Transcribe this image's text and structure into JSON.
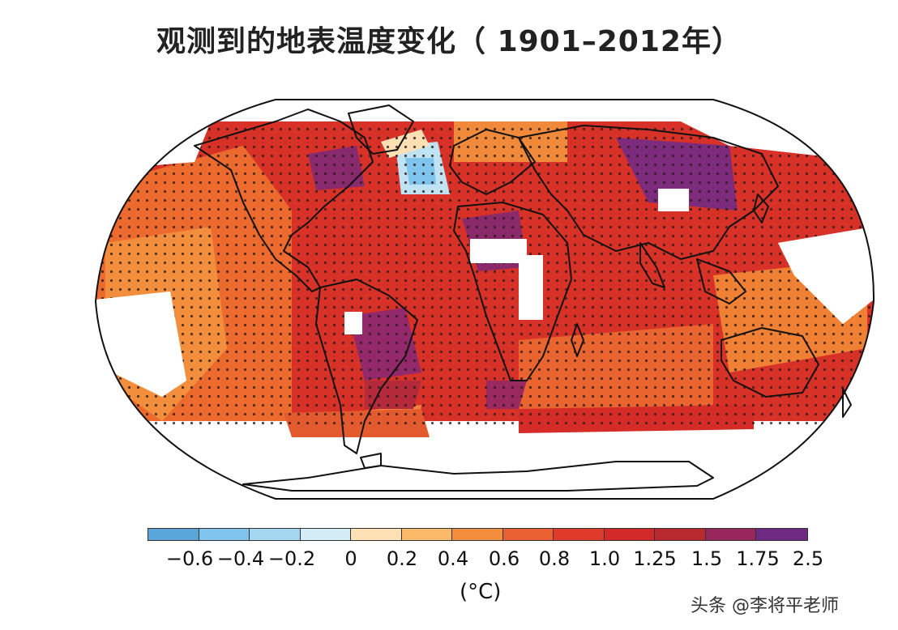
{
  "title": "观测到的地表温度变化（ 1901–2012年）",
  "legend": {
    "unit_label": "(°C)",
    "bins": [
      {
        "color": "#5aa6da"
      },
      {
        "color": "#7fc4ec"
      },
      {
        "color": "#a5d8f0"
      },
      {
        "color": "#d3ecf6"
      },
      {
        "color": "#fde0b4"
      },
      {
        "color": "#fbb96a"
      },
      {
        "color": "#f28e3e"
      },
      {
        "color": "#e96132"
      },
      {
        "color": "#df3a2a"
      },
      {
        "color": "#d22a2a"
      },
      {
        "color": "#b8282f"
      },
      {
        "color": "#97265a"
      },
      {
        "color": "#6e2a82"
      }
    ],
    "ticks": [
      "−0.6",
      "−0.4",
      "−0.2",
      "0",
      "0.2",
      "0.4",
      "0.6",
      "0.8",
      "1.0",
      "1.25",
      "1.5",
      "1.75",
      "2.5"
    ]
  },
  "watermark": "头条 @李将平老师"
}
